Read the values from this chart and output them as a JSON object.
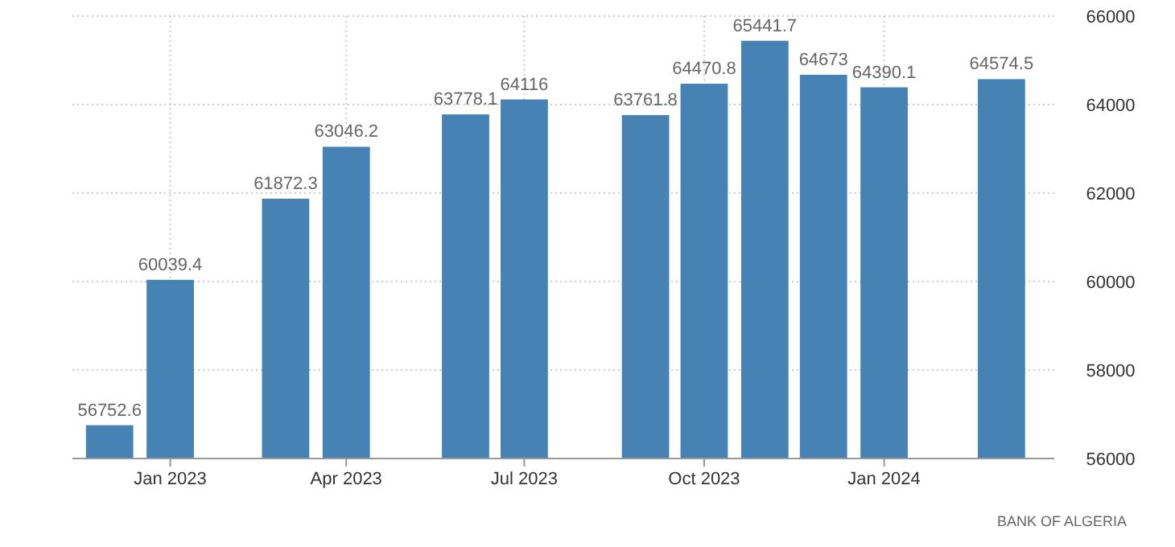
{
  "chart_data": {
    "type": "bar",
    "x": [
      "2022-12",
      "2023-01",
      "2023-03",
      "2023-04",
      "2023-06",
      "2023-07",
      "2023-09",
      "2023-10",
      "2023-11",
      "2023-12",
      "2024-01",
      "2024-03"
    ],
    "values": [
      56752.6,
      60039.4,
      61872.3,
      63046.2,
      63778.1,
      64116,
      63761.8,
      64470.8,
      65441.7,
      64673,
      64390.1,
      64574.5
    ],
    "color": "#4682b4",
    "xlim": [
      "2022-11-12",
      "2024-03-28"
    ],
    "xticks": [
      {
        "value": "2023-01",
        "label": "Jan 2023"
      },
      {
        "value": "2023-04",
        "label": "Apr 2023"
      },
      {
        "value": "2023-07",
        "label": "Jul 2023"
      },
      {
        "value": "2023-10",
        "label": "Oct 2023"
      },
      {
        "value": "2024-01",
        "label": "Jan 2024"
      }
    ],
    "ylim": [
      56000,
      66000
    ],
    "yticks": [
      56000,
      58000,
      60000,
      62000,
      64000,
      66000
    ],
    "grid": true,
    "data_labels": true,
    "annotations": [
      "BANK OF ALGERIA"
    ]
  }
}
